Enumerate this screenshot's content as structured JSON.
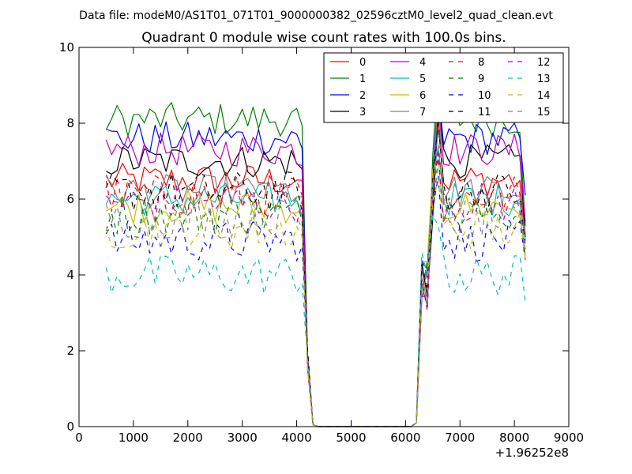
{
  "figure": {
    "suptitle": "Data file: modeM0/AS1T01_071T01_9000000382_02596cztM0_level2_quad_clean.evt"
  },
  "chart_data": {
    "type": "line",
    "title": "Quadrant 0 module wise count rates with 100.0s bins.",
    "xlabel": "",
    "ylabel": "",
    "x_offset_label": "+1.96252e8",
    "xlim": [
      0,
      9000
    ],
    "ylim": [
      0,
      10
    ],
    "xticks": [
      0,
      1000,
      2000,
      3000,
      4000,
      5000,
      6000,
      7000,
      8000,
      9000
    ],
    "yticks": [
      0,
      2,
      4,
      6,
      8,
      10
    ],
    "grid": false,
    "legend_position": "top-right",
    "legend_columns": 4,
    "x": [
      500,
      600,
      700,
      800,
      900,
      1000,
      1100,
      1200,
      1300,
      1400,
      1500,
      1600,
      1700,
      1800,
      1900,
      2000,
      2100,
      2200,
      2300,
      2400,
      2500,
      2600,
      2700,
      2800,
      2900,
      3000,
      3100,
      3200,
      3300,
      3400,
      3500,
      3600,
      3700,
      3800,
      3900,
      4000,
      4100,
      4200,
      4300,
      4400,
      4500,
      4600,
      4700,
      4800,
      4900,
      5000,
      5100,
      5200,
      5300,
      5400,
      5500,
      5600,
      5700,
      5800,
      5900,
      6000,
      6100,
      6200,
      6300,
      6400,
      6500,
      6600,
      6700,
      6800,
      6900,
      7000,
      7100,
      7200,
      7300,
      7400,
      7500,
      7600,
      7700,
      7800,
      7900,
      8000,
      8100,
      8200
    ],
    "series": [
      {
        "name": "0",
        "color": "#ff0000",
        "dash": "solid",
        "level": 6.5,
        "peak": 8.1,
        "tail": 4.9
      },
      {
        "name": "1",
        "color": "#008000",
        "dash": "solid",
        "level": 8.1,
        "peak": 9.5,
        "tail": 5.3
      },
      {
        "name": "2",
        "color": "#0000ff",
        "dash": "solid",
        "level": 7.6,
        "peak": 8.9,
        "tail": 6.1
      },
      {
        "name": "3",
        "color": "#000000",
        "dash": "solid",
        "level": 7.0,
        "peak": 8.6,
        "tail": 5.0
      },
      {
        "name": "4",
        "color": "#bf00bf",
        "dash": "solid",
        "level": 7.3,
        "peak": 8.7,
        "tail": 5.4
      },
      {
        "name": "5",
        "color": "#00bfbf",
        "dash": "solid",
        "level": 6.0,
        "peak": 7.4,
        "tail": 4.9
      },
      {
        "name": "6",
        "color": "#bfbf00",
        "dash": "solid",
        "level": 5.8,
        "peak": 7.0,
        "tail": 4.5
      },
      {
        "name": "7",
        "color": "#808080",
        "dash": "solid",
        "level": 6.2,
        "peak": 8.8,
        "tail": 5.1
      },
      {
        "name": "8",
        "color": "#ff0000",
        "dash": "dashed",
        "level": 6.1,
        "peak": 7.3,
        "tail": 4.8
      },
      {
        "name": "9",
        "color": "#008000",
        "dash": "dashed",
        "level": 5.6,
        "peak": 7.1,
        "tail": 4.6
      },
      {
        "name": "10",
        "color": "#0000ff",
        "dash": "dashed",
        "level": 4.9,
        "peak": 6.6,
        "tail": 4.4
      },
      {
        "name": "11",
        "color": "#000000",
        "dash": "dashed",
        "level": 6.2,
        "peak": 8.0,
        "tail": 4.7
      },
      {
        "name": "12",
        "color": "#bf00bf",
        "dash": "dashed",
        "level": 5.9,
        "peak": 7.2,
        "tail": 4.8
      },
      {
        "name": "13",
        "color": "#00bfbf",
        "dash": "dashed",
        "level": 4.0,
        "peak": 5.3,
        "tail": 3.3
      },
      {
        "name": "14",
        "color": "#bfbf00",
        "dash": "dashed",
        "level": 5.2,
        "peak": 6.5,
        "tail": 4.4
      },
      {
        "name": "15",
        "color": "#808080",
        "dash": "dashed",
        "level": 5.5,
        "peak": 7.8,
        "tail": 4.5
      }
    ]
  }
}
